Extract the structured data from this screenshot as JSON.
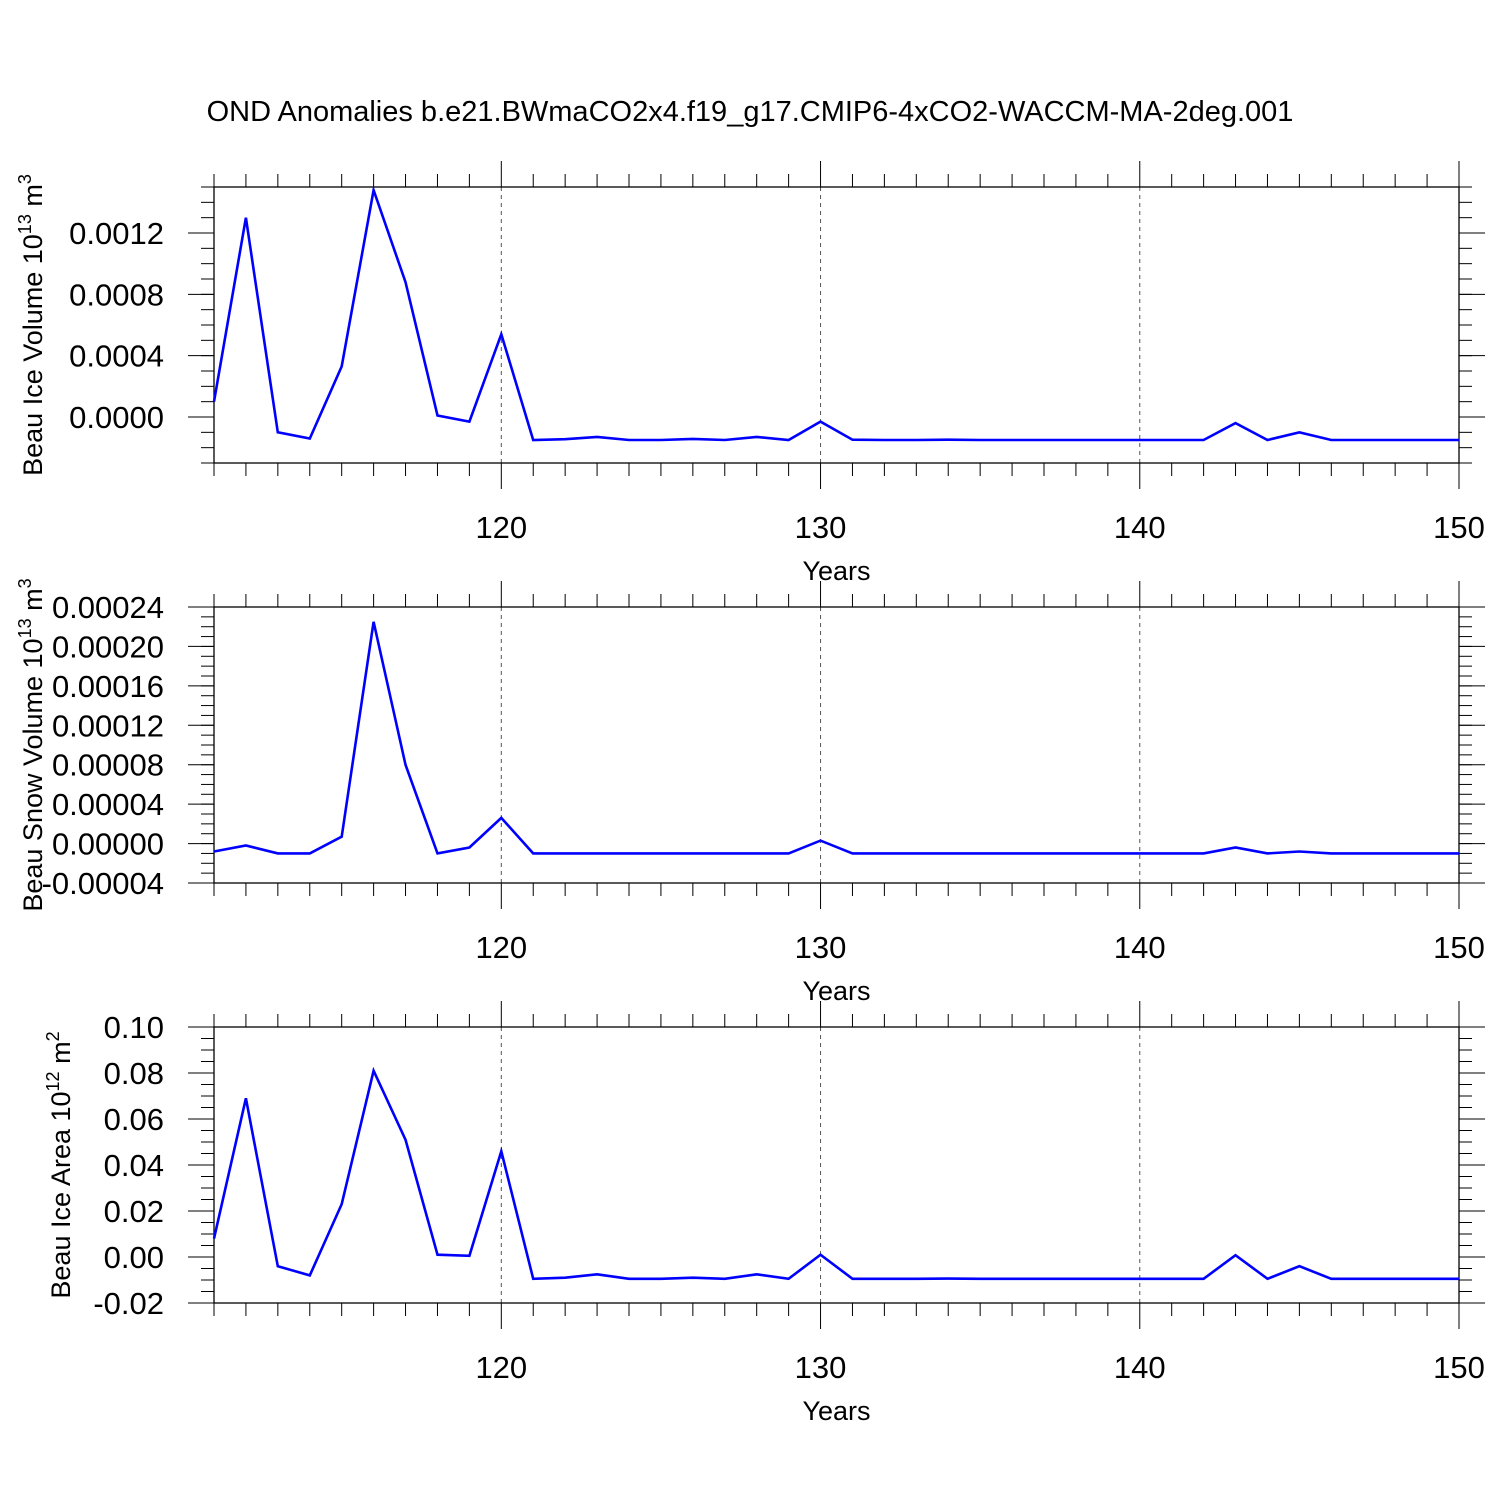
{
  "title": "OND Anomalies b.e21.BWmaCO2x4.f19_g17.CMIP6-4xCO2-WACCM-MA-2deg.001",
  "line_color": "#0000ff",
  "chart_data": [
    {
      "type": "line",
      "ylabel_main": "Beau Ice Volume 10",
      "ylabel_exp": "13",
      "ylabel_unit": " m",
      "ylabel_unit_exp": "3",
      "xlabel": "Years",
      "xlim": [
        111,
        150
      ],
      "ylim": [
        -0.0003,
        0.0015
      ],
      "xticks": [
        120,
        130,
        140,
        150
      ],
      "xtick_labels": [
        "120",
        "130",
        "140",
        "150"
      ],
      "yticks": [
        0.0,
        0.0004,
        0.0008,
        0.0012
      ],
      "ytick_labels": [
        "0.0000",
        "0.0004",
        "0.0008",
        "0.0012"
      ],
      "minor_y_step": 0.0001,
      "grid": "vertical dashed at major x ticks",
      "x": [
        111,
        112,
        113,
        114,
        115,
        116,
        117,
        118,
        119,
        120,
        121,
        122,
        123,
        124,
        125,
        126,
        127,
        128,
        129,
        130,
        131,
        132,
        133,
        134,
        135,
        136,
        137,
        138,
        139,
        140,
        141,
        142,
        143,
        144,
        145,
        146,
        147,
        148,
        149,
        150
      ],
      "y": [
        0.0001,
        0.0013,
        -0.0001,
        -0.00014,
        0.00033,
        0.00148,
        0.00088,
        1e-05,
        -3e-05,
        0.00054,
        -0.00015,
        -0.000145,
        -0.00013,
        -0.00015,
        -0.00015,
        -0.000143,
        -0.00015,
        -0.00013,
        -0.00015,
        -3e-05,
        -0.000148,
        -0.00015,
        -0.00015,
        -0.000148,
        -0.00015,
        -0.00015,
        -0.00015,
        -0.00015,
        -0.00015,
        -0.00015,
        -0.00015,
        -0.00015,
        -4e-05,
        -0.00015,
        -0.0001,
        -0.00015,
        -0.00015,
        -0.00015,
        -0.00015,
        -0.00015
      ]
    },
    {
      "type": "line",
      "ylabel_main": "Beau Snow Volume 10",
      "ylabel_exp": "13",
      "ylabel_unit": " m",
      "ylabel_unit_exp": "3",
      "xlabel": "Years",
      "xlim": [
        111,
        150
      ],
      "ylim": [
        -4e-05,
        0.00024
      ],
      "xticks": [
        120,
        130,
        140,
        150
      ],
      "xtick_labels": [
        "120",
        "130",
        "140",
        "150"
      ],
      "yticks": [
        -4e-05,
        0.0,
        4e-05,
        8e-05,
        0.00012,
        0.00016,
        0.0002,
        0.00024
      ],
      "ytick_labels": [
        "-0.00004",
        "0.00000",
        "0.00004",
        "0.00008",
        "0.00012",
        "0.00016",
        "0.00020",
        "0.00024"
      ],
      "minor_y_step": 1e-05,
      "grid": "vertical dashed at major x ticks",
      "x": [
        111,
        112,
        113,
        114,
        115,
        116,
        117,
        118,
        119,
        120,
        121,
        122,
        123,
        124,
        125,
        126,
        127,
        128,
        129,
        130,
        131,
        132,
        133,
        134,
        135,
        136,
        137,
        138,
        139,
        140,
        141,
        142,
        143,
        144,
        145,
        146,
        147,
        148,
        149,
        150
      ],
      "y": [
        -8e-06,
        -2e-06,
        -1e-05,
        -1e-05,
        7e-06,
        0.000225,
        8e-05,
        -1e-05,
        -4e-06,
        2.6e-05,
        -1e-05,
        -1e-05,
        -1e-05,
        -1e-05,
        -1e-05,
        -1e-05,
        -1e-05,
        -1e-05,
        -1e-05,
        3e-06,
        -1e-05,
        -1e-05,
        -1e-05,
        -1e-05,
        -1e-05,
        -1e-05,
        -1e-05,
        -1e-05,
        -1e-05,
        -1e-05,
        -1e-05,
        -1e-05,
        -4e-06,
        -1e-05,
        -8e-06,
        -1e-05,
        -1e-05,
        -1e-05,
        -1e-05,
        -1e-05
      ]
    },
    {
      "type": "line",
      "ylabel_main": "Beau Ice Area 10",
      "ylabel_exp": "12",
      "ylabel_unit": " m",
      "ylabel_unit_exp": "2",
      "xlabel": "Years",
      "xlim": [
        111,
        150
      ],
      "ylim": [
        -0.02,
        0.1
      ],
      "xticks": [
        120,
        130,
        140,
        150
      ],
      "xtick_labels": [
        "120",
        "130",
        "140",
        "150"
      ],
      "yticks": [
        -0.02,
        0.0,
        0.02,
        0.04,
        0.06,
        0.08,
        0.1
      ],
      "ytick_labels": [
        "-0.02",
        "0.00",
        "0.02",
        "0.04",
        "0.06",
        "0.08",
        "0.10"
      ],
      "minor_y_step": 0.005,
      "grid": "vertical dashed at major x ticks",
      "x": [
        111,
        112,
        113,
        114,
        115,
        116,
        117,
        118,
        119,
        120,
        121,
        122,
        123,
        124,
        125,
        126,
        127,
        128,
        129,
        130,
        131,
        132,
        133,
        134,
        135,
        136,
        137,
        138,
        139,
        140,
        141,
        142,
        143,
        144,
        145,
        146,
        147,
        148,
        149,
        150
      ],
      "y": [
        0.008,
        0.069,
        -0.004,
        -0.008,
        0.023,
        0.081,
        0.051,
        0.001,
        0.0005,
        0.046,
        -0.0095,
        -0.009,
        -0.0075,
        -0.0095,
        -0.0095,
        -0.009,
        -0.0095,
        -0.0075,
        -0.0095,
        0.001,
        -0.0095,
        -0.0095,
        -0.0095,
        -0.0094,
        -0.0095,
        -0.0095,
        -0.0095,
        -0.0095,
        -0.0095,
        -0.0095,
        -0.0095,
        -0.0095,
        0.0008,
        -0.0095,
        -0.004,
        -0.0095,
        -0.0095,
        -0.0095,
        -0.0095,
        -0.0095
      ]
    }
  ]
}
